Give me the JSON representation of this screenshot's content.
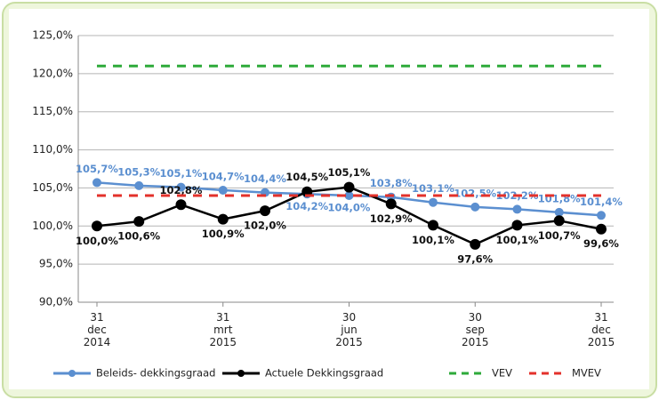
{
  "chart_data": {
    "type": "line",
    "categories": [
      [
        "31",
        "dec",
        "2014"
      ],
      null,
      null,
      [
        "31",
        "mrt",
        "2015"
      ],
      null,
      null,
      [
        "30",
        "jun",
        "2015"
      ],
      null,
      null,
      [
        "30",
        "sep",
        "2015"
      ],
      null,
      null,
      [
        "31",
        "dec",
        "2015"
      ]
    ],
    "ylim": [
      90,
      125
    ],
    "yticks": [
      {
        "value": 90,
        "label": "90,0%"
      },
      {
        "value": 95,
        "label": "95,0%"
      },
      {
        "value": 100,
        "label": "100,0%"
      },
      {
        "value": 105,
        "label": "105,0%"
      },
      {
        "value": 110,
        "label": "110,0%"
      },
      {
        "value": 115,
        "label": "115,0%"
      },
      {
        "value": 120,
        "label": "120,0%"
      },
      {
        "value": 125,
        "label": "125,0%"
      }
    ],
    "grid": true,
    "series": [
      {
        "name": "Beleids- dekkingsgraad",
        "color": "#5b8fd0",
        "marker": true,
        "dashed": false,
        "values": [
          105.7,
          105.3,
          105.1,
          104.7,
          104.4,
          104.2,
          104.0,
          103.8,
          103.1,
          102.5,
          102.2,
          101.8,
          101.4
        ],
        "value_labels": [
          "105,7%",
          "105,3%",
          "105,1%",
          "104,7%",
          "104,4%",
          "104,2%",
          "104,0%",
          "103,8%",
          "103,1%",
          "102,5%",
          "102,2%",
          "101,8%",
          "101,4%"
        ]
      },
      {
        "name": "Actuele Dekkingsgraad",
        "color": "#000000",
        "marker": true,
        "dashed": false,
        "values": [
          100.0,
          100.6,
          102.8,
          100.9,
          102.0,
          104.5,
          105.1,
          102.9,
          100.1,
          97.6,
          100.1,
          100.7,
          99.6
        ],
        "value_labels": [
          "100,0%",
          "100,6%",
          "102,8%",
          "100,9%",
          "102,0%",
          "104,5%",
          "105,1%",
          "102,9%",
          "100,1%",
          "97,6%",
          "100,1%",
          "100,7%",
          "99,6%"
        ]
      },
      {
        "name": "VEV",
        "color": "#2eaa3a",
        "marker": false,
        "dashed": true,
        "values": [
          121,
          121,
          121,
          121,
          121,
          121,
          121,
          121,
          121,
          121,
          121,
          121,
          121
        ]
      },
      {
        "name": "MVEV",
        "color": "#e3312b",
        "marker": false,
        "dashed": true,
        "values": [
          104,
          104,
          104,
          104,
          104,
          104,
          104,
          104,
          104,
          104,
          104,
          104,
          104
        ]
      }
    ]
  }
}
